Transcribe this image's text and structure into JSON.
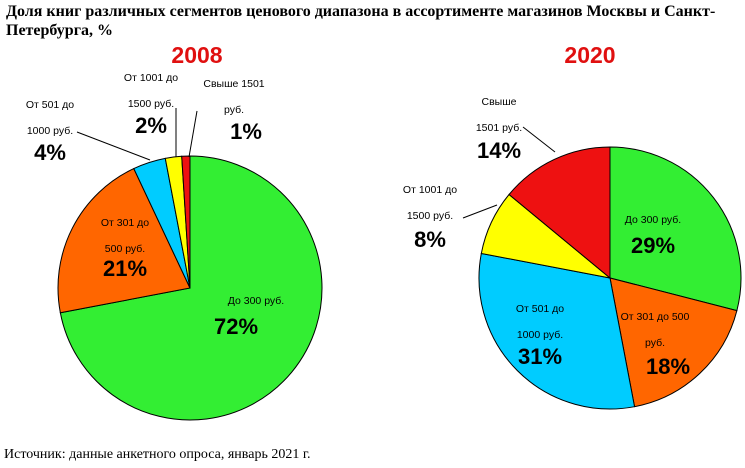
{
  "title": "Доля книг различных сегментов ценового диапазона в ассортименте магазинов Москвы и Санкт-Петербурга, %",
  "source": "Источник: данные анкетного опроса, январь 2021 г.",
  "colors": {
    "year": "#e01010",
    "stroke": "#000000",
    "leader": "#000000"
  },
  "chart_data": [
    {
      "type": "pie",
      "title": "2008",
      "slices": [
        {
          "lines": [
            "До 300 руб."
          ],
          "value": 72,
          "label": "72%",
          "color": "#33ee33"
        },
        {
          "lines": [
            "От 301 до",
            "500 руб."
          ],
          "value": 21,
          "label": "21%",
          "color": "#ff6600"
        },
        {
          "lines": [
            "От 501 до",
            "1000 руб."
          ],
          "value": 4,
          "label": "4%",
          "color": "#00ccff"
        },
        {
          "lines": [
            "От 1001 до",
            "1500 руб."
          ],
          "value": 2,
          "label": "2%",
          "color": "#ffff00"
        },
        {
          "lines": [
            "Свыше 1501",
            "руб."
          ],
          "value": 1,
          "label": "1%",
          "color": "#ee1111"
        }
      ]
    },
    {
      "type": "pie",
      "title": "2020",
      "slices": [
        {
          "lines": [
            "До 300 руб."
          ],
          "value": 29,
          "label": "29%",
          "color": "#33ee33"
        },
        {
          "lines": [
            "От 301 до 500",
            "руб."
          ],
          "value": 18,
          "label": "18%",
          "color": "#ff6600"
        },
        {
          "lines": [
            "От 501 до",
            "1000 руб."
          ],
          "value": 31,
          "label": "31%",
          "color": "#00ccff"
        },
        {
          "lines": [
            "От 1001 до",
            "1500 руб."
          ],
          "value": 8,
          "label": "8%",
          "color": "#ffff00"
        },
        {
          "lines": [
            "Свыше",
            "1501 руб."
          ],
          "value": 14,
          "label": "14%",
          "color": "#ee1111"
        }
      ]
    }
  ]
}
